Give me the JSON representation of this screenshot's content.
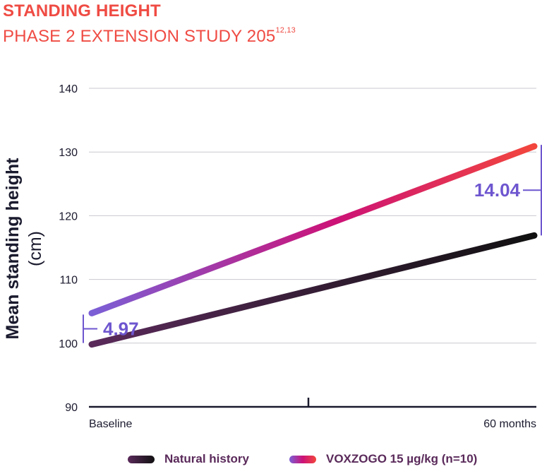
{
  "chart_data": {
    "type": "line",
    "title": "STANDING HEIGHT",
    "subtitle": "PHASE 2 EXTENSION STUDY 205",
    "subtitle_sup": "12,13",
    "ylabel": "Mean standing height",
    "ylabel_unit": "(cm)",
    "ylim": [
      90,
      140
    ],
    "yticks": [
      90,
      100,
      110,
      120,
      130,
      140
    ],
    "categories": [
      "Baseline",
      "60 months"
    ],
    "grid": true,
    "legend_position": "bottom",
    "series": [
      {
        "name": "Natural history",
        "values": [
          99.8,
          116.9
        ],
        "color_start": "#5a2a5a",
        "color_end": "#111111"
      },
      {
        "name": "VOXZOGO 15 µg/kg (n=10)",
        "values": [
          104.7,
          130.9
        ],
        "color_start": "#7b5fd6",
        "color_mid": "#cc1277",
        "color_end": "#f2463d"
      }
    ],
    "annotations": [
      {
        "text": "4.97",
        "at": "Baseline"
      },
      {
        "text": "14.04",
        "at": "60 months"
      }
    ]
  }
}
